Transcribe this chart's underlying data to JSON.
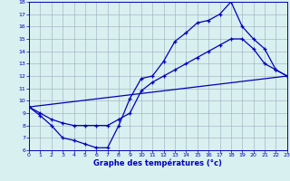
{
  "xlabel": "Graphe des températures (°c)",
  "background_color": "#d8f0f0",
  "grid_color": "#9aaabb",
  "line_color": "#0000bb",
  "xlim": [
    0,
    23
  ],
  "ylim": [
    6,
    18
  ],
  "xticks": [
    0,
    1,
    2,
    3,
    4,
    5,
    6,
    7,
    8,
    9,
    10,
    11,
    12,
    13,
    14,
    15,
    16,
    17,
    18,
    19,
    20,
    21,
    22,
    23
  ],
  "yticks": [
    6,
    7,
    8,
    9,
    10,
    11,
    12,
    13,
    14,
    15,
    16,
    17,
    18
  ],
  "line1_x": [
    0,
    1,
    2,
    3,
    4,
    5,
    6,
    7,
    8,
    9,
    10,
    11,
    12,
    13,
    14,
    15,
    16,
    17,
    18,
    19,
    20,
    21,
    22,
    23
  ],
  "line1_y": [
    9.5,
    8.8,
    8.0,
    7.0,
    6.8,
    6.5,
    6.2,
    6.2,
    8.0,
    10.2,
    11.8,
    12.0,
    13.2,
    14.8,
    15.5,
    16.3,
    16.5,
    17.0,
    18.0,
    16.0,
    15.0,
    14.2,
    12.5,
    12.0
  ],
  "line2_x": [
    0,
    1,
    2,
    3,
    4,
    5,
    6,
    7,
    8,
    9,
    10,
    11,
    12,
    13,
    14,
    15,
    16,
    17,
    18,
    19,
    20,
    21,
    22,
    23
  ],
  "line2_y": [
    9.5,
    9.0,
    8.5,
    8.2,
    8.0,
    8.0,
    8.0,
    8.0,
    8.5,
    9.0,
    10.8,
    11.5,
    12.0,
    12.5,
    13.0,
    13.5,
    14.0,
    14.5,
    15.0,
    15.0,
    14.2,
    13.0,
    12.5,
    12.0
  ],
  "line3_x": [
    0,
    23
  ],
  "line3_y": [
    9.5,
    12.0
  ]
}
